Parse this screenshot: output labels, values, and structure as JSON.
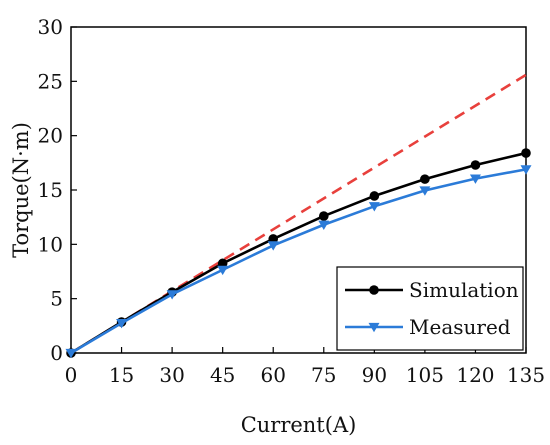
{
  "chart_data": {
    "type": "line",
    "title": "",
    "xlabel": "Current(A)",
    "ylabel": "Torque(N·m)",
    "xlim": [
      0,
      135
    ],
    "ylim": [
      0,
      30
    ],
    "x_ticks": [
      0,
      15,
      30,
      45,
      60,
      75,
      90,
      105,
      120,
      135
    ],
    "y_ticks": [
      0,
      5,
      10,
      15,
      20,
      25,
      30
    ],
    "grid": false,
    "legend_position": "bottom-right",
    "series": [
      {
        "name": "",
        "style": "dashed",
        "color": "#e8403c",
        "marker": "none",
        "x": [
          0,
          135
        ],
        "y": [
          0,
          25.6
        ]
      },
      {
        "name": "Simulation",
        "style": "solid",
        "color": "#000000",
        "marker": "circle",
        "x": [
          0,
          15,
          30,
          45,
          60,
          75,
          90,
          105,
          120,
          135
        ],
        "y": [
          0,
          2.85,
          5.6,
          8.25,
          10.5,
          12.6,
          14.45,
          16.0,
          17.3,
          18.4
        ]
      },
      {
        "name": "Measured",
        "style": "solid",
        "color": "#2b7bd8",
        "marker": "triangle-down",
        "x": [
          0,
          15,
          30,
          45,
          60,
          75,
          90,
          105,
          120,
          135
        ],
        "y": [
          0,
          2.75,
          5.4,
          7.65,
          9.9,
          11.8,
          13.5,
          14.95,
          16.05,
          16.9
        ]
      }
    ]
  }
}
